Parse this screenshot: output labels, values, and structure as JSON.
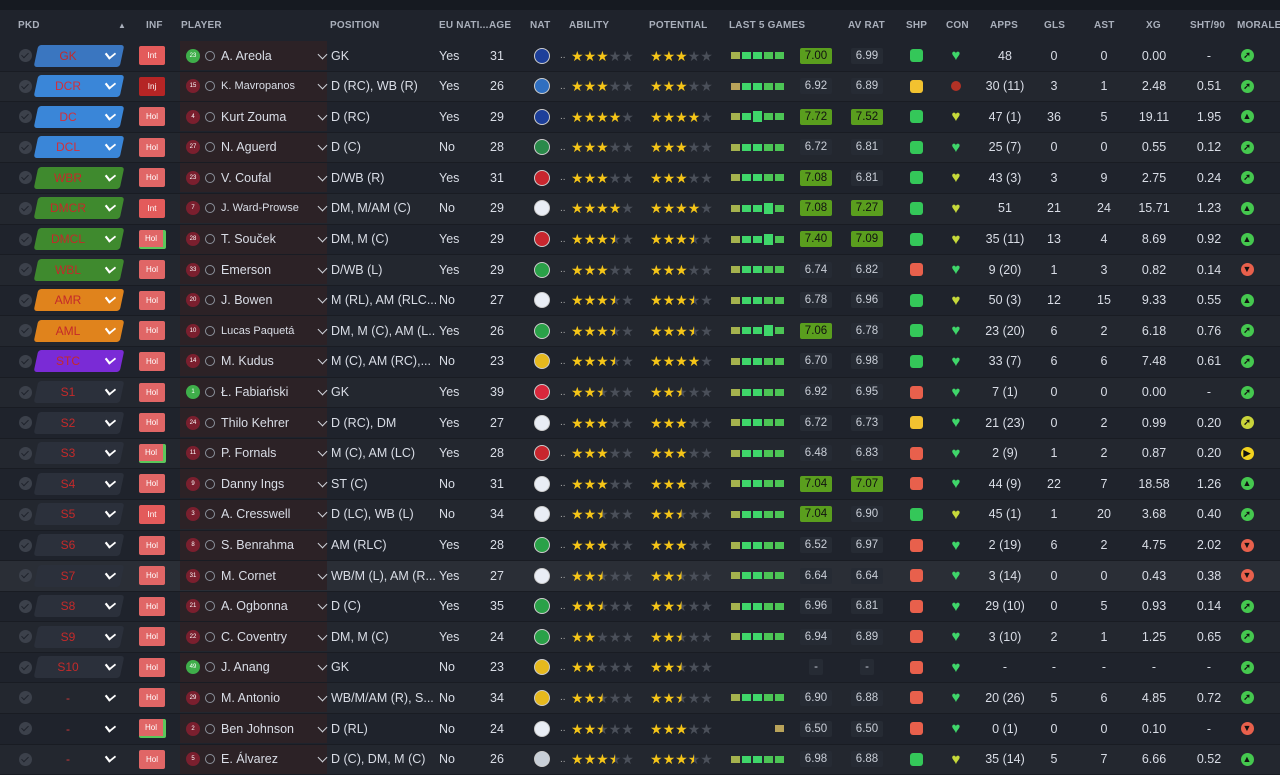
{
  "headers": {
    "pkd": "PKD",
    "inf": "INF",
    "player": "PLAYER",
    "position": "POSITION",
    "eu": "EU NATI...",
    "age": "AGE",
    "nat": "NAT",
    "ability": "ABILITY",
    "potential": "POTENTIAL",
    "last5": "LAST 5 GAMES",
    "avrat": "AV RAT",
    "shp": "SHP",
    "con": "CON",
    "apps": "APPS",
    "gls": "GLS",
    "ast": "AST",
    "xg": "XG",
    "sht90": "SHT/90",
    "morale": "MORALE"
  },
  "colors": {
    "gk": "#3a76c0",
    "def": "#3a86d8",
    "wing": "#3f8a2e",
    "mid": "#e0831c",
    "st": "#7a2bd6",
    "sub": "#2c3240",
    "star": "#f5c518",
    "rating_good": "#5a9e1e",
    "form_good": "#3fd66a",
    "form_mid": "#b9a35a",
    "shp_up": "#34c759",
    "shp_flat": "#f2c230",
    "shp_down": "#e8604c"
  },
  "players": [
    {
      "pos": "GK",
      "posColor": "gk",
      "inf": "Int",
      "infType": "int",
      "shirt": "23",
      "gk": true,
      "name": "A. Areola",
      "position": "GK",
      "eu": "Yes",
      "age": "31",
      "flag": "#1d3f9a",
      "ability": 3,
      "potential": 3,
      "form": [
        "g",
        "g",
        "g",
        "g",
        "g"
      ],
      "last": "7.00",
      "lastGood": true,
      "avrat": "6.99",
      "avGood": false,
      "shp": "up",
      "con": "green",
      "apps": "48",
      "gls": "0",
      "ast": "0",
      "xg": "0.00",
      "sht": "-",
      "mor": "up"
    },
    {
      "pos": "DCR",
      "posColor": "def",
      "inf": "Inj",
      "infType": "inj",
      "shirt": "15",
      "name": "K. Mavropanos",
      "small": true,
      "position": "D (RC), WB (R)",
      "eu": "Yes",
      "age": "26",
      "flag": "#2f6fc0",
      "ability": 3,
      "potential": 3,
      "form": [
        "m",
        "g",
        "g",
        "g",
        "g"
      ],
      "last": "6.92",
      "lastGood": false,
      "avrat": "6.89",
      "avGood": false,
      "shp": "flat",
      "con": "red",
      "apps": "30 (11)",
      "gls": "3",
      "ast": "1",
      "xg": "2.48",
      "sht": "0.51",
      "mor": "up"
    },
    {
      "pos": "DC",
      "posColor": "def",
      "inf": "Hol",
      "infType": "hol2",
      "shirt": "4",
      "name": "Kurt Zouma",
      "position": "D (RC)",
      "eu": "Yes",
      "age": "29",
      "flag": "#1d3f9a",
      "ability": 4,
      "potential": 4,
      "form": [
        "g",
        "g",
        "b",
        "g",
        "g"
      ],
      "last": "7.72",
      "lastGood": true,
      "avrat": "7.52",
      "avGood": true,
      "shp": "up",
      "con": "yellow",
      "apps": "47 (1)",
      "gls": "36",
      "ast": "5",
      "xg": "19.11",
      "sht": "1.95",
      "mor": "up2"
    },
    {
      "pos": "DCL",
      "posColor": "def",
      "inf": "Hol",
      "infType": "hol2",
      "shirt": "27",
      "name": "N. Aguerd",
      "position": "D (C)",
      "eu": "No",
      "age": "28",
      "flag": "#2a8a4a",
      "ability": 3,
      "potential": 3,
      "form": [
        "g",
        "g",
        "g",
        "g",
        "g"
      ],
      "last": "6.72",
      "lastGood": false,
      "avrat": "6.81",
      "avGood": false,
      "shp": "up",
      "con": "green",
      "apps": "25 (7)",
      "gls": "0",
      "ast": "0",
      "xg": "0.55",
      "sht": "0.12",
      "mor": "up"
    },
    {
      "pos": "WBR",
      "posColor": "wing",
      "inf": "Hol",
      "infType": "hol2",
      "shirt": "23",
      "name": "V. Coufal",
      "position": "D/WB (R)",
      "eu": "Yes",
      "age": "31",
      "flag": "#c8262e",
      "ability": 3,
      "potential": 3,
      "form": [
        "g",
        "g",
        "g",
        "g",
        "g"
      ],
      "last": "7.08",
      "lastGood": true,
      "avrat": "6.81",
      "avGood": false,
      "shp": "up",
      "con": "yellow",
      "apps": "43 (3)",
      "gls": "3",
      "ast": "9",
      "xg": "2.75",
      "sht": "0.24",
      "mor": "up"
    },
    {
      "pos": "DMCR",
      "posColor": "wing",
      "inf": "Int",
      "infType": "int",
      "shirt": "7",
      "name": "J. Ward-Prowse",
      "small": true,
      "position": "DM, M/AM (C)",
      "eu": "No",
      "age": "29",
      "flag": "#e9edf5",
      "ability": 4,
      "potential": 4,
      "form": [
        "g",
        "g",
        "g",
        "b",
        "g"
      ],
      "last": "7.08",
      "lastGood": true,
      "avrat": "7.27",
      "avGood": true,
      "shp": "up",
      "con": "yellow",
      "apps": "51",
      "gls": "21",
      "ast": "24",
      "xg": "15.71",
      "sht": "1.23",
      "mor": "up2"
    },
    {
      "pos": "DMCL",
      "posColor": "wing",
      "inf": "Hol",
      "infType": "hol",
      "shirt": "28",
      "name": "T. Souček",
      "position": "DM, M (C)",
      "eu": "Yes",
      "age": "29",
      "flag": "#c8262e",
      "ability": 3.5,
      "potential": 3.5,
      "form": [
        "g",
        "g",
        "g",
        "b",
        "g"
      ],
      "last": "7.40",
      "lastGood": true,
      "avrat": "7.09",
      "avGood": true,
      "shp": "up",
      "con": "yellow",
      "apps": "35 (11)",
      "gls": "13",
      "ast": "4",
      "xg": "8.69",
      "sht": "0.92",
      "mor": "up2"
    },
    {
      "pos": "WBL",
      "posColor": "wing",
      "inf": "Hol",
      "infType": "hol2",
      "shirt": "33",
      "name": "Emerson",
      "position": "D/WB (L)",
      "eu": "Yes",
      "age": "29",
      "flag": "#2aa148",
      "ability": 3,
      "potential": 3,
      "form": [
        "g",
        "g",
        "g",
        "g",
        "g"
      ],
      "last": "6.74",
      "lastGood": false,
      "avrat": "6.82",
      "avGood": false,
      "shp": "down",
      "con": "green",
      "apps": "9 (20)",
      "gls": "1",
      "ast": "3",
      "xg": "0.82",
      "sht": "0.14",
      "mor": "down"
    },
    {
      "pos": "AMR",
      "posColor": "mid",
      "inf": "Hol",
      "infType": "hol2",
      "shirt": "20",
      "name": "J. Bowen",
      "position": "M (RL), AM (RLC...",
      "eu": "No",
      "age": "27",
      "flag": "#e9edf5",
      "ability": 3.5,
      "potential": 3.5,
      "form": [
        "g",
        "g",
        "g",
        "g",
        "g"
      ],
      "last": "6.78",
      "lastGood": false,
      "avrat": "6.96",
      "avGood": false,
      "shp": "up",
      "con": "yellow",
      "apps": "50 (3)",
      "gls": "12",
      "ast": "15",
      "xg": "9.33",
      "sht": "0.55",
      "mor": "up2"
    },
    {
      "pos": "AML",
      "posColor": "mid",
      "inf": "Hol",
      "infType": "hol2",
      "shirt": "10",
      "name": "Lucas Paquetá",
      "small": true,
      "position": "DM, M (C), AM (L...",
      "eu": "Yes",
      "age": "26",
      "flag": "#2aa148",
      "ability": 3.5,
      "potential": 3.5,
      "form": [
        "g",
        "g",
        "g",
        "b",
        "g"
      ],
      "last": "7.06",
      "lastGood": true,
      "avrat": "6.78",
      "avGood": false,
      "shp": "up",
      "con": "green",
      "apps": "23 (20)",
      "gls": "6",
      "ast": "2",
      "xg": "6.18",
      "sht": "0.76",
      "mor": "up"
    },
    {
      "pos": "STC",
      "posColor": "st",
      "inf": "Hol",
      "infType": "hol2",
      "shirt": "14",
      "name": "M. Kudus",
      "position": "M (C), AM (RC),...",
      "eu": "No",
      "age": "23",
      "flag": "#e6b91e",
      "ability": 3.5,
      "potential": 4,
      "form": [
        "g",
        "g",
        "g",
        "g",
        "g"
      ],
      "last": "6.70",
      "lastGood": false,
      "avrat": "6.98",
      "avGood": false,
      "shp": "up",
      "con": "green",
      "apps": "33 (7)",
      "gls": "6",
      "ast": "6",
      "xg": "7.48",
      "sht": "0.61",
      "mor": "up"
    },
    {
      "pos": "S1",
      "posColor": "sub",
      "inf": "Hol",
      "infType": "hol2",
      "shirt": "1",
      "gk": true,
      "name": "Ł. Fabiański",
      "position": "GK",
      "eu": "Yes",
      "age": "39",
      "flag": "#d8283c",
      "ability": 2.5,
      "potential": 2.5,
      "form": [
        "g",
        "g",
        "g",
        "g",
        "g"
      ],
      "last": "6.92",
      "lastGood": false,
      "avrat": "6.95",
      "avGood": false,
      "shp": "down",
      "con": "green",
      "apps": "7 (1)",
      "gls": "0",
      "ast": "0",
      "xg": "0.00",
      "sht": "-",
      "mor": "up"
    },
    {
      "pos": "S2",
      "posColor": "sub",
      "inf": "Hol",
      "infType": "hol2",
      "shirt": "24",
      "name": "Thilo Kehrer",
      "position": "D (RC), DM",
      "eu": "Yes",
      "age": "27",
      "flag": "#e9edf5",
      "ability": 3,
      "potential": 3,
      "form": [
        "g",
        "g",
        "g",
        "g",
        "g"
      ],
      "last": "6.72",
      "lastGood": false,
      "avrat": "6.73",
      "avGood": false,
      "shp": "flat",
      "con": "green",
      "apps": "21 (23)",
      "gls": "0",
      "ast": "2",
      "xg": "0.99",
      "sht": "0.20",
      "mor": "mid"
    },
    {
      "pos": "S3",
      "posColor": "sub",
      "inf": "Hol",
      "infType": "hol",
      "shirt": "11",
      "name": "P. Fornals",
      "position": "M (C), AM (LC)",
      "eu": "Yes",
      "age": "28",
      "flag": "#c8262e",
      "ability": 3,
      "potential": 3,
      "form": [
        "g",
        "g",
        "g",
        "g",
        "g"
      ],
      "last": "6.48",
      "lastGood": false,
      "avrat": "6.83",
      "avGood": false,
      "shp": "down",
      "con": "green",
      "apps": "2 (9)",
      "gls": "1",
      "ast": "2",
      "xg": "0.87",
      "sht": "0.20",
      "mor": "flat"
    },
    {
      "pos": "S4",
      "posColor": "sub",
      "inf": "Hol",
      "infType": "hol2",
      "shirt": "9",
      "name": "Danny Ings",
      "position": "ST (C)",
      "eu": "No",
      "age": "31",
      "flag": "#e9edf5",
      "ability": 3,
      "potential": 3,
      "form": [
        "g",
        "g",
        "g",
        "g",
        "g"
      ],
      "last": "7.04",
      "lastGood": true,
      "avrat": "7.07",
      "avGood": true,
      "shp": "down",
      "con": "green",
      "apps": "44 (9)",
      "gls": "22",
      "ast": "7",
      "xg": "18.58",
      "sht": "1.26",
      "mor": "up2"
    },
    {
      "pos": "S5",
      "posColor": "sub",
      "inf": "Int",
      "infType": "int",
      "shirt": "3",
      "name": "A. Cresswell",
      "position": "D (LC), WB (L)",
      "eu": "No",
      "age": "34",
      "flag": "#e9edf5",
      "ability": 2.5,
      "potential": 2.5,
      "form": [
        "g",
        "g",
        "g",
        "g",
        "g"
      ],
      "last": "7.04",
      "lastGood": true,
      "avrat": "6.90",
      "avGood": false,
      "shp": "up",
      "con": "yellow",
      "apps": "45 (1)",
      "gls": "1",
      "ast": "20",
      "xg": "3.68",
      "sht": "0.40",
      "mor": "up"
    },
    {
      "pos": "S6",
      "posColor": "sub",
      "inf": "Hol",
      "infType": "hol2",
      "shirt": "8",
      "name": "S. Benrahma",
      "position": "AM (RLC)",
      "eu": "Yes",
      "age": "28",
      "flag": "#2aa148",
      "ability": 3,
      "potential": 3,
      "form": [
        "g",
        "g",
        "g",
        "g",
        "g"
      ],
      "last": "6.52",
      "lastGood": false,
      "avrat": "6.97",
      "avGood": false,
      "shp": "down",
      "con": "green",
      "apps": "2 (19)",
      "gls": "6",
      "ast": "2",
      "xg": "4.75",
      "sht": "2.02",
      "mor": "down"
    },
    {
      "pos": "S7",
      "posColor": "sub",
      "inf": "Hol",
      "infType": "hol2",
      "shirt": "31",
      "name": "M. Cornet",
      "position": "WB/M (L), AM (R...",
      "eu": "Yes",
      "age": "27",
      "flag": "#e9edf5",
      "ability": 2.5,
      "potential": 2.5,
      "form": [
        "g",
        "g",
        "g",
        "g",
        "g"
      ],
      "last": "6.64",
      "lastGood": false,
      "avrat": "6.64",
      "avGood": false,
      "shp": "down",
      "con": "green",
      "apps": "3 (14)",
      "gls": "0",
      "ast": "0",
      "xg": "0.43",
      "sht": "0.38",
      "mor": "down"
    },
    {
      "pos": "S8",
      "posColor": "sub",
      "inf": "Hol",
      "infType": "hol2",
      "shirt": "21",
      "name": "A. Ogbonna",
      "position": "D (C)",
      "eu": "Yes",
      "age": "35",
      "flag": "#2aa148",
      "ability": 2.5,
      "potential": 2.5,
      "form": [
        "g",
        "g",
        "g",
        "g",
        "g"
      ],
      "last": "6.96",
      "lastGood": false,
      "avrat": "6.81",
      "avGood": false,
      "shp": "upalt",
      "con": "green",
      "apps": "29 (10)",
      "gls": "0",
      "ast": "5",
      "xg": "0.93",
      "sht": "0.14",
      "mor": "up"
    },
    {
      "pos": "S9",
      "posColor": "sub",
      "inf": "Hol",
      "infType": "hol2",
      "shirt": "22",
      "name": "C. Coventry",
      "position": "DM, M (C)",
      "eu": "Yes",
      "age": "24",
      "flag": "#2aa148",
      "ability": 2,
      "potential": 2.5,
      "form": [
        "g",
        "g",
        "g",
        "g",
        "g"
      ],
      "last": "6.94",
      "lastGood": false,
      "avrat": "6.89",
      "avGood": false,
      "shp": "down",
      "con": "green",
      "apps": "3 (10)",
      "gls": "2",
      "ast": "1",
      "xg": "1.25",
      "sht": "0.65",
      "mor": "up"
    },
    {
      "pos": "S10",
      "posColor": "sub",
      "inf": "Hol",
      "infType": "hol2",
      "shirt": "49",
      "gk": true,
      "name": "J. Anang",
      "position": "GK",
      "eu": "No",
      "age": "23",
      "flag": "#e6b91e",
      "ability": 2,
      "potential": 2.5,
      "form": [],
      "last": "-",
      "lastGood": false,
      "avrat": "-",
      "avGood": false,
      "shp": "down",
      "con": "green",
      "apps": "-",
      "gls": "-",
      "ast": "-",
      "xg": "-",
      "sht": "-",
      "mor": "up"
    },
    {
      "pos": "-",
      "posColor": "none",
      "inf": "Hol",
      "infType": "hol2",
      "shirt": "29",
      "name": "M. Antonio",
      "position": "WB/M/AM (R), S...",
      "eu": "No",
      "age": "34",
      "flag": "#e6b91e",
      "ability": 2.5,
      "potential": 2.5,
      "form": [
        "g",
        "g",
        "g",
        "g",
        "g"
      ],
      "last": "6.90",
      "lastGood": false,
      "avrat": "6.88",
      "avGood": false,
      "shp": "down",
      "con": "green",
      "apps": "20 (26)",
      "gls": "5",
      "ast": "6",
      "xg": "4.85",
      "sht": "0.72",
      "mor": "up"
    },
    {
      "pos": "-",
      "posColor": "none",
      "inf": "Hol",
      "infType": "hol",
      "shirt": "2",
      "name": "Ben Johnson",
      "position": "D (RL)",
      "eu": "No",
      "age": "24",
      "flag": "#e9edf5",
      "ability": 2.5,
      "potential": 3,
      "form": [
        "m"
      ],
      "last": "6.50",
      "lastGood": false,
      "avrat": "6.50",
      "avGood": false,
      "shp": "down",
      "con": "green",
      "apps": "0 (1)",
      "gls": "0",
      "ast": "0",
      "xg": "0.10",
      "sht": "-",
      "mor": "down"
    },
    {
      "pos": "-",
      "posColor": "none",
      "inf": "Hol",
      "infType": "hol2",
      "shirt": "5",
      "name": "E. Álvarez",
      "position": "D (C), DM, M (C)",
      "eu": "No",
      "age": "26",
      "flag": "#c8cfd8",
      "ability": 3.5,
      "potential": 3.5,
      "form": [
        "g",
        "g",
        "g",
        "g",
        "g"
      ],
      "last": "6.98",
      "lastGood": false,
      "avrat": "6.88",
      "avGood": false,
      "shp": "up",
      "con": "yellow",
      "apps": "35 (14)",
      "gls": "5",
      "ast": "7",
      "xg": "6.66",
      "sht": "0.52",
      "mor": "up2"
    }
  ]
}
